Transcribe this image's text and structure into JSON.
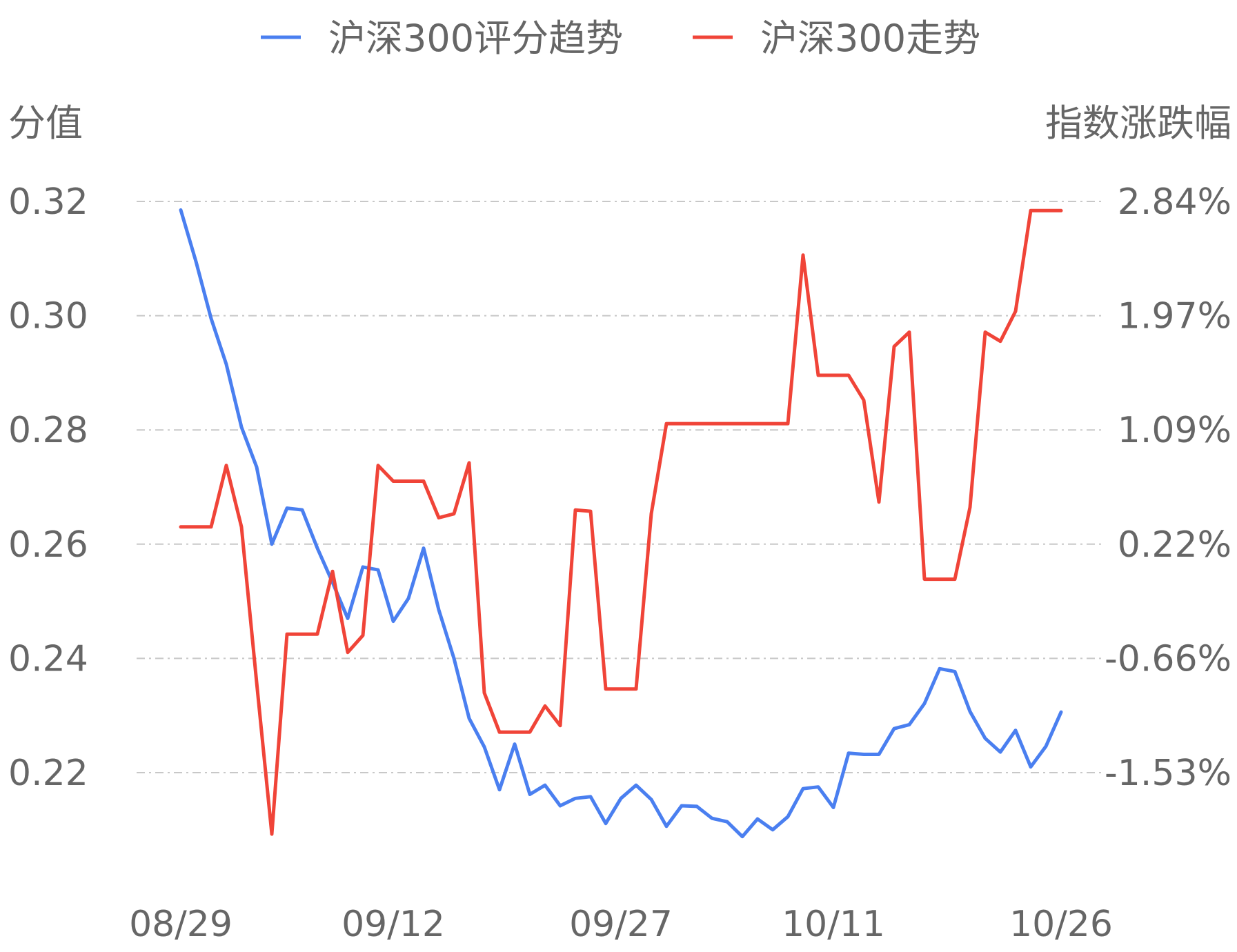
{
  "chart_data": {
    "type": "line",
    "legend": {
      "placement": "top-center"
    },
    "grid": true,
    "y_left": {
      "label": "分值",
      "range": [
        0.22,
        0.32
      ],
      "ticks": [
        "0.32",
        "0.30",
        "0.28",
        "0.26",
        "0.24",
        "0.22"
      ]
    },
    "y_right": {
      "label": "指数涨跌幅",
      "range": [
        -1.53,
        2.84
      ],
      "ticks": [
        "2.84%",
        "1.97%",
        "1.09%",
        "0.22%",
        "-0.66%",
        "-1.53%"
      ]
    },
    "x_ticks": [
      {
        "label": "08/29",
        "index": 0
      },
      {
        "label": "09/12",
        "index": 14
      },
      {
        "label": "09/27",
        "index": 29
      },
      {
        "label": "10/11",
        "index": 43
      },
      {
        "label": "10/26",
        "index": 58
      }
    ],
    "series": [
      {
        "name": "沪深300评分趋势",
        "color": "#4a7ff0",
        "axis": "left",
        "values": [
          0.3185,
          0.3095,
          0.2995,
          0.2915,
          0.2805,
          0.2735,
          0.26,
          0.2663,
          0.266,
          0.2593,
          0.2533,
          0.247,
          0.256,
          0.2555,
          0.2465,
          0.2505,
          0.2593,
          0.2485,
          0.24,
          0.2295,
          0.2245,
          0.217,
          0.225,
          0.2162,
          0.2178,
          0.2142,
          0.2155,
          0.2158,
          0.2111,
          0.2155,
          0.2178,
          0.2153,
          0.2106,
          0.2142,
          0.2141,
          0.212,
          0.2114,
          0.2088,
          0.2119,
          0.21,
          0.2123,
          0.2172,
          0.2175,
          0.2139,
          0.2234,
          0.2232,
          0.2232,
          0.2277,
          0.2284,
          0.2321,
          0.2382,
          0.2377,
          0.2307,
          0.226,
          0.2236,
          0.2274,
          0.221,
          0.2246,
          0.2306
        ]
      },
      {
        "name": "沪深300走势",
        "color": "#f04438",
        "axis": "right",
        "values": [
          0.35,
          0.35,
          0.35,
          0.82,
          0.35,
          -0.84,
          -2.0,
          -0.47,
          -0.47,
          -0.47,
          0.01,
          -0.61,
          -0.48,
          0.82,
          0.7,
          0.7,
          0.7,
          0.42,
          0.45,
          0.84,
          -0.92,
          -1.22,
          -1.22,
          -1.22,
          -1.02,
          -1.17,
          0.48,
          0.47,
          -0.89,
          -0.89,
          -0.89,
          0.45,
          1.14,
          1.14,
          1.14,
          1.14,
          1.14,
          1.14,
          1.14,
          1.14,
          1.14,
          2.43,
          1.51,
          1.51,
          1.51,
          1.32,
          0.54,
          1.73,
          1.84,
          -0.05,
          -0.05,
          -0.05,
          0.5,
          1.84,
          1.77,
          2.0,
          2.77,
          2.77,
          2.77
        ]
      }
    ]
  }
}
